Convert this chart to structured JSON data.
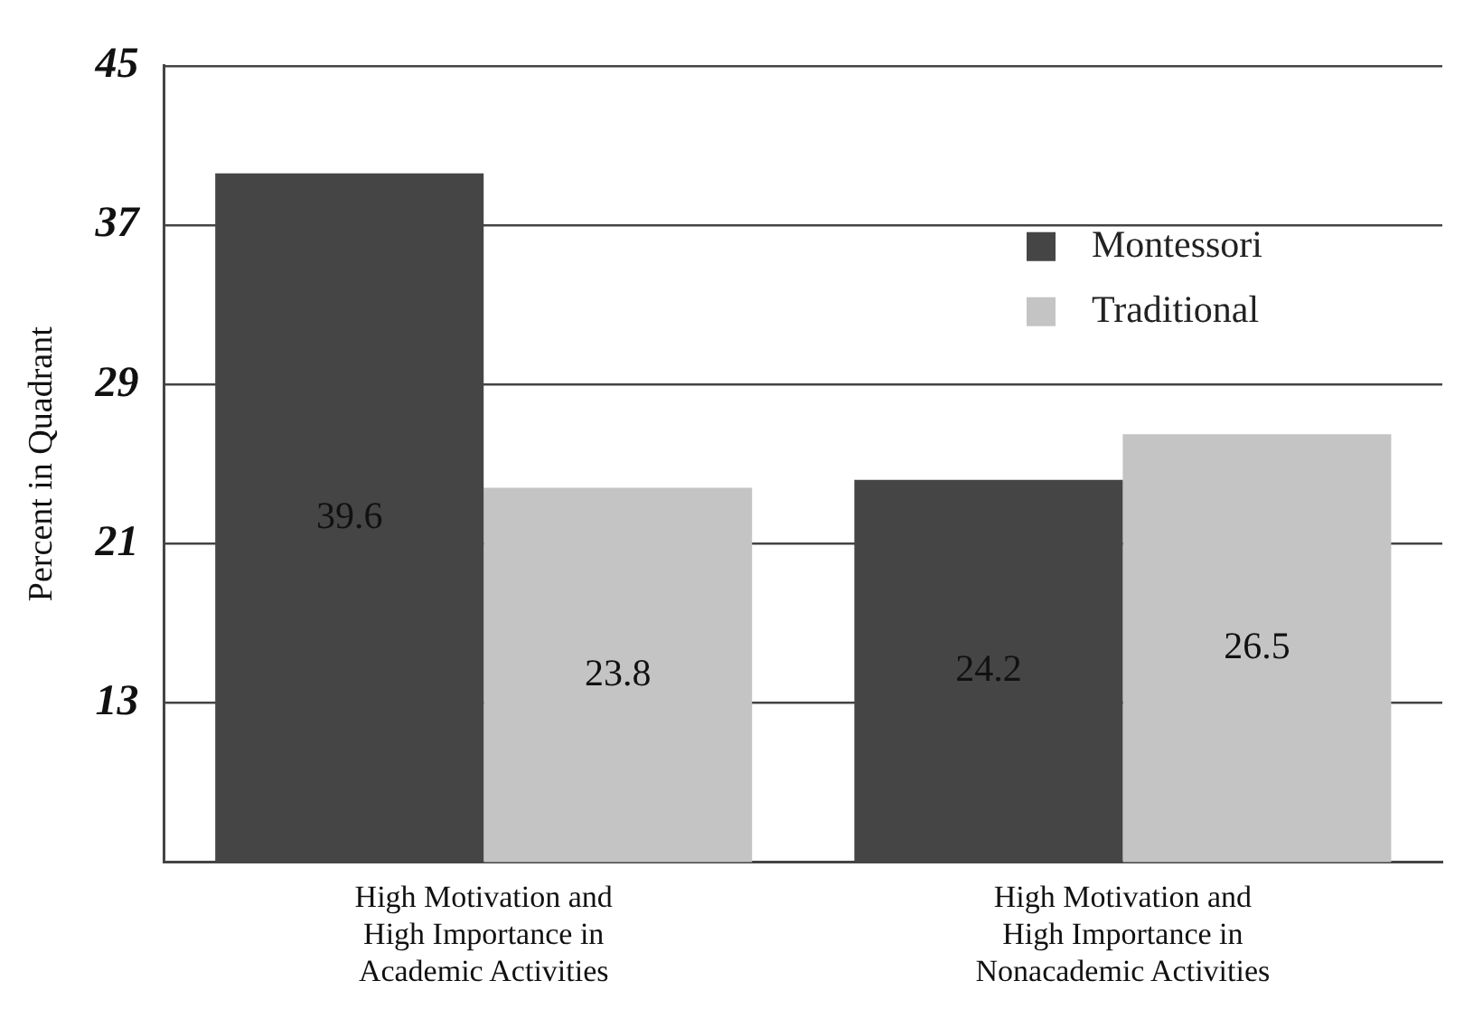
{
  "chart_data": {
    "type": "bar",
    "ylabel": "Percent in Quadrant",
    "categories": [
      "High Motivation and\nHigh Importance in\nAcademic Activities",
      "High Motivation and\nHigh Importance in\nNonacademic Activities"
    ],
    "series": [
      {
        "name": "Montessori",
        "color": "#454545",
        "values": [
          39.6,
          24.2
        ]
      },
      {
        "name": "Traditional",
        "color": "#c4c4c4",
        "values": [
          23.8,
          26.5
        ]
      }
    ],
    "ylim": [
      5,
      45
    ],
    "yticks": [
      13,
      21,
      29,
      37,
      45
    ],
    "grid": "y",
    "legend": "top right",
    "data_labels": true
  }
}
